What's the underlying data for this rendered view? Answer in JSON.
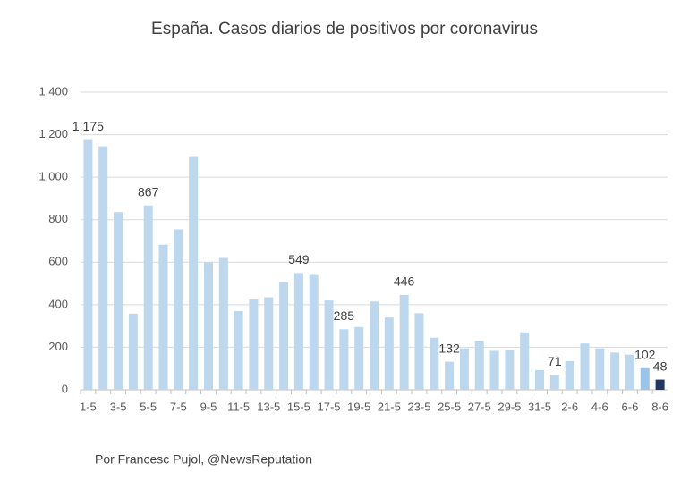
{
  "chart_data": {
    "type": "bar",
    "title": "España. Casos diarios de positivos por coronavirus",
    "footer": "Por Francesc Pujol, @NewsReputation",
    "categories": [
      "1-5",
      null,
      "3-5",
      null,
      "5-5",
      null,
      "7-5",
      null,
      "9-5",
      null,
      "11-5",
      null,
      "13-5",
      null,
      "15-5",
      null,
      "17-5",
      null,
      "19-5",
      null,
      "21-5",
      null,
      "23-5",
      null,
      "25-5",
      null,
      "27-5",
      null,
      "29-5",
      null,
      "31-5",
      null,
      "2-6",
      null,
      "4-6",
      null,
      "6-6",
      null,
      "8-6"
    ],
    "values": [
      1175,
      1145,
      836,
      358,
      867,
      682,
      755,
      1095,
      600,
      620,
      370,
      425,
      435,
      505,
      549,
      540,
      420,
      285,
      295,
      415,
      340,
      446,
      360,
      245,
      132,
      195,
      230,
      183,
      185,
      270,
      93,
      71,
      135,
      218,
      195,
      175,
      165,
      102,
      48
    ],
    "value_labels": [
      "1.175",
      null,
      null,
      null,
      "867",
      null,
      null,
      null,
      null,
      null,
      null,
      null,
      null,
      null,
      "549",
      null,
      null,
      "285",
      null,
      null,
      null,
      "446",
      null,
      null,
      "132",
      null,
      null,
      null,
      null,
      null,
      null,
      "71",
      null,
      null,
      null,
      null,
      null,
      "102",
      "48"
    ],
    "colors": [
      "#bdd7ee",
      "#bdd7ee",
      "#bdd7ee",
      "#bdd7ee",
      "#bdd7ee",
      "#bdd7ee",
      "#bdd7ee",
      "#bdd7ee",
      "#bdd7ee",
      "#bdd7ee",
      "#bdd7ee",
      "#bdd7ee",
      "#bdd7ee",
      "#bdd7ee",
      "#bdd7ee",
      "#bdd7ee",
      "#bdd7ee",
      "#bdd7ee",
      "#bdd7ee",
      "#bdd7ee",
      "#bdd7ee",
      "#bdd7ee",
      "#bdd7ee",
      "#bdd7ee",
      "#bdd7ee",
      "#bdd7ee",
      "#bdd7ee",
      "#bdd7ee",
      "#bdd7ee",
      "#bdd7ee",
      "#bdd7ee",
      "#bdd7ee",
      "#bdd7ee",
      "#bdd7ee",
      "#bdd7ee",
      "#bdd7ee",
      "#bdd7ee",
      "#9dc3e6",
      "#1f3864"
    ],
    "ylim": [
      0,
      1400
    ],
    "yticks": [
      0,
      200,
      400,
      600,
      800,
      {
        "value": 1000,
        "label": "1.000"
      },
      {
        "value": 1200,
        "label": "1.200"
      },
      {
        "value": 1400,
        "label": "1.400"
      }
    ],
    "grid": true
  }
}
